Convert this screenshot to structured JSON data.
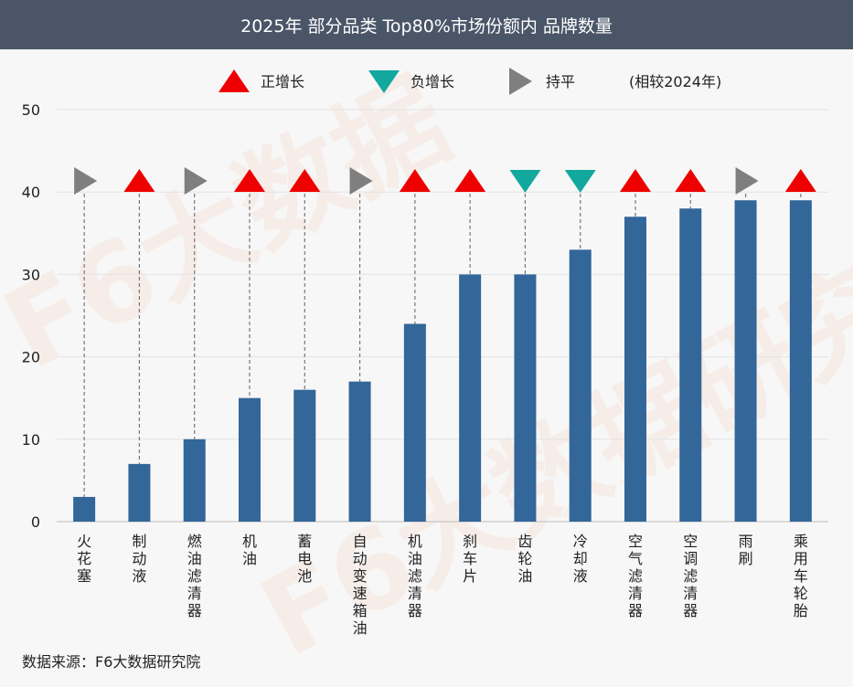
{
  "header": {
    "title": "2025年 部分品类 Top80%市场份额内 品牌数量"
  },
  "legend": {
    "up_label": "正增长",
    "down_label": "负增长",
    "flat_label": "持平",
    "note": "(相较2024年)"
  },
  "source": "数据来源：F6大数据研究院",
  "colors": {
    "bar": "#336699",
    "up": "#ee0000",
    "down": "#13a89e",
    "flat": "#7f7f7f",
    "header_bg": "#4a5568"
  },
  "chart_data": {
    "type": "bar",
    "title": "2025年 部分品类 Top80%市场份额内 品牌数量",
    "xlabel": "",
    "ylabel": "",
    "ylim": [
      0,
      50
    ],
    "yticks": [
      0,
      10,
      20,
      30,
      40,
      50
    ],
    "grid": true,
    "legend_position": "top",
    "categories": [
      "火花塞",
      "制动液",
      "燃油滤清器",
      "机油",
      "蓄电池",
      "自动变速箱油",
      "机油滤清器",
      "刹车片",
      "齿轮油",
      "冷却液",
      "空气滤清器",
      "空调滤清器",
      "雨刷",
      "乘用车轮胎"
    ],
    "values": [
      3,
      7,
      10,
      15,
      16,
      17,
      24,
      30,
      30,
      33,
      37,
      38,
      39,
      39
    ],
    "trend": [
      "flat",
      "up",
      "flat",
      "up",
      "up",
      "flat",
      "up",
      "up",
      "down",
      "down",
      "up",
      "up",
      "flat",
      "up"
    ]
  }
}
